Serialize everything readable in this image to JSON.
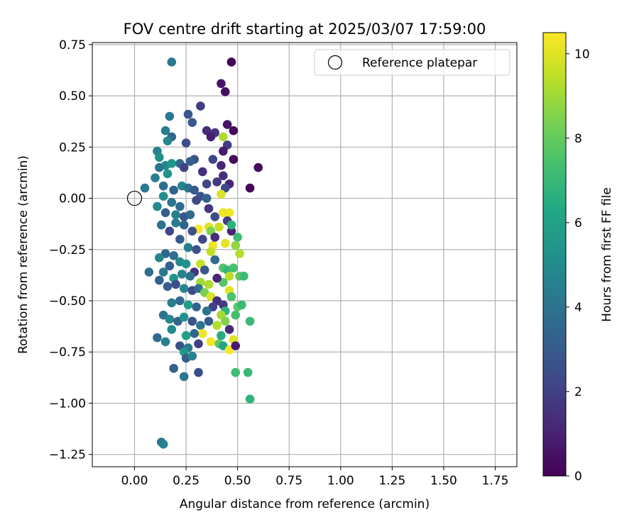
{
  "chart_data": {
    "type": "scatter",
    "title": "FOV centre drift starting at 2025/03/07 17:59:00",
    "xlabel": "Angular distance from reference (arcmin)",
    "ylabel": "Rotation from reference (arcmin)",
    "xlim": [
      -0.205,
      1.855
    ],
    "ylim": [
      -1.31,
      0.76
    ],
    "xticks": [
      0.0,
      0.25,
      0.5,
      0.75,
      1.0,
      1.25,
      1.5,
      1.75
    ],
    "xtick_labels": [
      "0.00",
      "0.25",
      "0.50",
      "0.75",
      "1.00",
      "1.25",
      "1.50",
      "1.75"
    ],
    "yticks": [
      0.75,
      0.5,
      0.25,
      0.0,
      -0.25,
      -0.5,
      -0.75,
      -1.0,
      -1.25
    ],
    "ytick_labels": [
      "0.75",
      "0.50",
      "0.25",
      "0.00",
      "−0.25",
      "−0.50",
      "−0.75",
      "−1.00",
      "−1.25"
    ],
    "grid": true,
    "legend": {
      "placement": "top-right",
      "entries": [
        "Reference platepar"
      ]
    },
    "reference_point": {
      "x": 0.0,
      "y": 0.0
    },
    "colorbar": {
      "label": "Hours from first FF file",
      "colormap": "viridis",
      "range": [
        0,
        10.5
      ],
      "ticks": [
        0,
        2,
        4,
        6,
        8,
        10
      ],
      "tick_labels": [
        "0",
        "2",
        "4",
        "6",
        "8",
        "10"
      ]
    },
    "points": [
      {
        "x": 0.47,
        "y": 0.665,
        "h": 0.1
      },
      {
        "x": 0.42,
        "y": 0.56,
        "h": 0.6
      },
      {
        "x": 0.44,
        "y": 0.52,
        "h": 0.4
      },
      {
        "x": 0.32,
        "y": 0.45,
        "h": 1.9
      },
      {
        "x": 0.26,
        "y": 0.41,
        "h": 2.8
      },
      {
        "x": 0.45,
        "y": 0.36,
        "h": 0.5
      },
      {
        "x": 0.35,
        "y": 0.33,
        "h": 1.3
      },
      {
        "x": 0.39,
        "y": 0.32,
        "h": 1.6
      },
      {
        "x": 0.48,
        "y": 0.33,
        "h": 0.2
      },
      {
        "x": 0.43,
        "y": 0.3,
        "h": 9.2
      },
      {
        "x": 0.37,
        "y": 0.3,
        "h": 0.9
      },
      {
        "x": 0.45,
        "y": 0.26,
        "h": 1.8
      },
      {
        "x": 0.43,
        "y": 0.23,
        "h": 0.8
      },
      {
        "x": 0.48,
        "y": 0.19,
        "h": 0.2
      },
      {
        "x": 0.6,
        "y": 0.15,
        "h": 0.3
      },
      {
        "x": 0.38,
        "y": 0.19,
        "h": 2.2
      },
      {
        "x": 0.42,
        "y": 0.16,
        "h": 1.2
      },
      {
        "x": 0.43,
        "y": 0.11,
        "h": 1.5
      },
      {
        "x": 0.46,
        "y": 0.07,
        "h": 1.1
      },
      {
        "x": 0.56,
        "y": 0.05,
        "h": 0.2
      },
      {
        "x": 0.44,
        "y": 0.05,
        "h": 2.4
      },
      {
        "x": 0.4,
        "y": 0.08,
        "h": 1.7
      },
      {
        "x": 0.35,
        "y": 0.07,
        "h": 2.1
      },
      {
        "x": 0.33,
        "y": 0.13,
        "h": 1.4
      },
      {
        "x": 0.29,
        "y": 0.19,
        "h": 2.6
      },
      {
        "x": 0.25,
        "y": 0.27,
        "h": 2.5
      },
      {
        "x": 0.28,
        "y": 0.37,
        "h": 2.9
      },
      {
        "x": 0.18,
        "y": 0.665,
        "h": 4.2
      },
      {
        "x": 0.17,
        "y": 0.4,
        "h": 4.3
      },
      {
        "x": 0.15,
        "y": 0.33,
        "h": 4.5
      },
      {
        "x": 0.18,
        "y": 0.3,
        "h": 3.5
      },
      {
        "x": 0.16,
        "y": 0.28,
        "h": 4.8
      },
      {
        "x": 0.11,
        "y": 0.23,
        "h": 4.6
      },
      {
        "x": 0.12,
        "y": 0.2,
        "h": 5.2
      },
      {
        "x": 0.15,
        "y": 0.16,
        "h": 4.9
      },
      {
        "x": 0.18,
        "y": 0.17,
        "h": 5.5
      },
      {
        "x": 0.12,
        "y": 0.15,
        "h": 4.0
      },
      {
        "x": 0.22,
        "y": 0.17,
        "h": 3.6
      },
      {
        "x": 0.27,
        "y": 0.18,
        "h": 3.2
      },
      {
        "x": 0.24,
        "y": 0.15,
        "h": 2.0
      },
      {
        "x": 0.16,
        "y": 0.12,
        "h": 5.4
      },
      {
        "x": 0.1,
        "y": 0.1,
        "h": 4.4
      },
      {
        "x": 0.05,
        "y": 0.05,
        "h": 4.2
      },
      {
        "x": 0.14,
        "y": 0.06,
        "h": 3.8
      },
      {
        "x": 0.19,
        "y": 0.04,
        "h": 3.4
      },
      {
        "x": 0.23,
        "y": 0.06,
        "h": 4.7
      },
      {
        "x": 0.26,
        "y": 0.05,
        "h": 3.9
      },
      {
        "x": 0.29,
        "y": 0.04,
        "h": 3.0
      },
      {
        "x": 0.32,
        "y": 0.01,
        "h": 2.7
      },
      {
        "x": 0.35,
        "y": 0.0,
        "h": 3.3
      },
      {
        "x": 0.3,
        "y": -0.01,
        "h": 2.3
      },
      {
        "x": 0.14,
        "y": 0.01,
        "h": 5.1
      },
      {
        "x": 0.18,
        "y": -0.02,
        "h": 4.1
      },
      {
        "x": 0.22,
        "y": -0.04,
        "h": 3.7
      },
      {
        "x": 0.11,
        "y": -0.04,
        "h": 4.9
      },
      {
        "x": 0.15,
        "y": -0.07,
        "h": 3.1
      },
      {
        "x": 0.2,
        "y": -0.08,
        "h": 4.6
      },
      {
        "x": 0.24,
        "y": -0.09,
        "h": 2.8
      },
      {
        "x": 0.27,
        "y": -0.08,
        "h": 3.6
      },
      {
        "x": 0.36,
        "y": -0.05,
        "h": 1.6
      },
      {
        "x": 0.39,
        "y": -0.09,
        "h": 2.4
      },
      {
        "x": 0.42,
        "y": 0.02,
        "h": 9.9
      },
      {
        "x": 0.43,
        "y": -0.07,
        "h": 10.2
      },
      {
        "x": 0.46,
        "y": -0.07,
        "h": 10.3
      },
      {
        "x": 0.41,
        "y": -0.14,
        "h": 9.6
      },
      {
        "x": 0.47,
        "y": -0.16,
        "h": 1.1
      },
      {
        "x": 0.45,
        "y": -0.11,
        "h": 1.9
      },
      {
        "x": 0.47,
        "y": -0.13,
        "h": 6.7
      },
      {
        "x": 0.36,
        "y": -0.14,
        "h": 10.0
      },
      {
        "x": 0.31,
        "y": -0.15,
        "h": 10.4
      },
      {
        "x": 0.37,
        "y": -0.16,
        "h": 8.5
      },
      {
        "x": 0.5,
        "y": -0.19,
        "h": 7.2
      },
      {
        "x": 0.44,
        "y": -0.22,
        "h": 10.1
      },
      {
        "x": 0.49,
        "y": -0.23,
        "h": 8.8
      },
      {
        "x": 0.38,
        "y": -0.23,
        "h": 10.2
      },
      {
        "x": 0.37,
        "y": -0.26,
        "h": 9.5
      },
      {
        "x": 0.51,
        "y": -0.27,
        "h": 9.3
      },
      {
        "x": 0.39,
        "y": -0.19,
        "h": 1.3
      },
      {
        "x": 0.33,
        "y": -0.2,
        "h": 2.2
      },
      {
        "x": 0.28,
        "y": -0.16,
        "h": 2.6
      },
      {
        "x": 0.24,
        "y": -0.13,
        "h": 3.4
      },
      {
        "x": 0.2,
        "y": -0.12,
        "h": 4.3
      },
      {
        "x": 0.17,
        "y": -0.16,
        "h": 2.1
      },
      {
        "x": 0.13,
        "y": -0.13,
        "h": 4.0
      },
      {
        "x": 0.22,
        "y": -0.2,
        "h": 3.0
      },
      {
        "x": 0.26,
        "y": -0.24,
        "h": 4.4
      },
      {
        "x": 0.3,
        "y": -0.25,
        "h": 2.7
      },
      {
        "x": 0.19,
        "y": -0.28,
        "h": 3.8
      },
      {
        "x": 0.15,
        "y": -0.27,
        "h": 3.5
      },
      {
        "x": 0.12,
        "y": -0.29,
        "h": 4.7
      },
      {
        "x": 0.17,
        "y": -0.33,
        "h": 3.2
      },
      {
        "x": 0.22,
        "y": -0.31,
        "h": 4.9
      },
      {
        "x": 0.25,
        "y": -0.32,
        "h": 5.3
      },
      {
        "x": 0.32,
        "y": -0.32,
        "h": 9.6
      },
      {
        "x": 0.29,
        "y": -0.36,
        "h": 1.5
      },
      {
        "x": 0.34,
        "y": -0.35,
        "h": 2.9
      },
      {
        "x": 0.39,
        "y": -0.3,
        "h": 3.6
      },
      {
        "x": 0.43,
        "y": -0.34,
        "h": 7.6
      },
      {
        "x": 0.45,
        "y": -0.35,
        "h": 6.9
      },
      {
        "x": 0.48,
        "y": -0.34,
        "h": 7.4
      },
      {
        "x": 0.51,
        "y": -0.38,
        "h": 7.9
      },
      {
        "x": 0.53,
        "y": -0.38,
        "h": 7.1
      },
      {
        "x": 0.46,
        "y": -0.38,
        "h": 9.4
      },
      {
        "x": 0.43,
        "y": -0.41,
        "h": 7.7
      },
      {
        "x": 0.46,
        "y": -0.45,
        "h": 10.1
      },
      {
        "x": 0.4,
        "y": -0.39,
        "h": 1.1
      },
      {
        "x": 0.36,
        "y": -0.42,
        "h": 9.2
      },
      {
        "x": 0.32,
        "y": -0.41,
        "h": 9.0
      },
      {
        "x": 0.27,
        "y": -0.38,
        "h": 3.9
      },
      {
        "x": 0.23,
        "y": -0.37,
        "h": 4.6
      },
      {
        "x": 0.19,
        "y": -0.39,
        "h": 5.6
      },
      {
        "x": 0.14,
        "y": -0.36,
        "h": 4.3
      },
      {
        "x": 0.12,
        "y": -0.4,
        "h": 3.3
      },
      {
        "x": 0.07,
        "y": -0.36,
        "h": 3.8
      },
      {
        "x": 0.16,
        "y": -0.43,
        "h": 3.1
      },
      {
        "x": 0.2,
        "y": -0.42,
        "h": 2.5
      },
      {
        "x": 0.24,
        "y": -0.44,
        "h": 4.8
      },
      {
        "x": 0.28,
        "y": -0.45,
        "h": 2.3
      },
      {
        "x": 0.31,
        "y": -0.44,
        "h": 3.7
      },
      {
        "x": 0.34,
        "y": -0.46,
        "h": 8.4
      },
      {
        "x": 0.37,
        "y": -0.48,
        "h": 9.9
      },
      {
        "x": 0.4,
        "y": -0.5,
        "h": 1.4
      },
      {
        "x": 0.43,
        "y": -0.52,
        "h": 1.8
      },
      {
        "x": 0.47,
        "y": -0.48,
        "h": 7.5
      },
      {
        "x": 0.5,
        "y": -0.53,
        "h": 7.8
      },
      {
        "x": 0.52,
        "y": -0.52,
        "h": 7.0
      },
      {
        "x": 0.49,
        "y": -0.57,
        "h": 7.3
      },
      {
        "x": 0.44,
        "y": -0.55,
        "h": 6.8
      },
      {
        "x": 0.42,
        "y": -0.57,
        "h": 9.1
      },
      {
        "x": 0.38,
        "y": -0.53,
        "h": 2.0
      },
      {
        "x": 0.35,
        "y": -0.55,
        "h": 4.0
      },
      {
        "x": 0.3,
        "y": -0.53,
        "h": 3.3
      },
      {
        "x": 0.26,
        "y": -0.52,
        "h": 5.8
      },
      {
        "x": 0.22,
        "y": -0.5,
        "h": 3.6
      },
      {
        "x": 0.18,
        "y": -0.51,
        "h": 4.4
      },
      {
        "x": 0.14,
        "y": -0.57,
        "h": 3.9
      },
      {
        "x": 0.17,
        "y": -0.59,
        "h": 4.9
      },
      {
        "x": 0.21,
        "y": -0.6,
        "h": 3.4
      },
      {
        "x": 0.24,
        "y": -0.58,
        "h": 5.3
      },
      {
        "x": 0.28,
        "y": -0.6,
        "h": 2.7
      },
      {
        "x": 0.32,
        "y": -0.62,
        "h": 4.1
      },
      {
        "x": 0.36,
        "y": -0.6,
        "h": 3.0
      },
      {
        "x": 0.4,
        "y": -0.62,
        "h": 9.3
      },
      {
        "x": 0.44,
        "y": -0.6,
        "h": 8.5
      },
      {
        "x": 0.56,
        "y": -0.6,
        "h": 7.1
      },
      {
        "x": 0.46,
        "y": -0.64,
        "h": 1.2
      },
      {
        "x": 0.42,
        "y": -0.67,
        "h": 6.5
      },
      {
        "x": 0.33,
        "y": -0.66,
        "h": 10.2
      },
      {
        "x": 0.29,
        "y": -0.66,
        "h": 3.5
      },
      {
        "x": 0.25,
        "y": -0.67,
        "h": 5.9
      },
      {
        "x": 0.18,
        "y": -0.64,
        "h": 5.0
      },
      {
        "x": 0.11,
        "y": -0.68,
        "h": 3.7
      },
      {
        "x": 0.15,
        "y": -0.7,
        "h": 4.5
      },
      {
        "x": 0.22,
        "y": -0.72,
        "h": 2.6
      },
      {
        "x": 0.26,
        "y": -0.73,
        "h": 4.2
      },
      {
        "x": 0.31,
        "y": -0.71,
        "h": 1.9
      },
      {
        "x": 0.37,
        "y": -0.7,
        "h": 10.3
      },
      {
        "x": 0.41,
        "y": -0.71,
        "h": 7.9
      },
      {
        "x": 0.43,
        "y": -0.72,
        "h": 6.2
      },
      {
        "x": 0.46,
        "y": -0.74,
        "h": 10.4
      },
      {
        "x": 0.48,
        "y": -0.69,
        "h": 10.0
      },
      {
        "x": 0.49,
        "y": -0.72,
        "h": 0.8
      },
      {
        "x": 0.24,
        "y": -0.75,
        "h": 5.6
      },
      {
        "x": 0.25,
        "y": -0.78,
        "h": 3.1
      },
      {
        "x": 0.28,
        "y": -0.77,
        "h": 4.7
      },
      {
        "x": 0.31,
        "y": -0.85,
        "h": 2.5
      },
      {
        "x": 0.19,
        "y": -0.83,
        "h": 3.2
      },
      {
        "x": 0.24,
        "y": -0.87,
        "h": 4.1
      },
      {
        "x": 0.49,
        "y": -0.85,
        "h": 7.2
      },
      {
        "x": 0.55,
        "y": -0.85,
        "h": 7.0
      },
      {
        "x": 0.56,
        "y": -0.98,
        "h": 6.8
      },
      {
        "x": 0.13,
        "y": -1.19,
        "h": 3.9
      },
      {
        "x": 0.14,
        "y": -1.2,
        "h": 4.6
      }
    ]
  }
}
